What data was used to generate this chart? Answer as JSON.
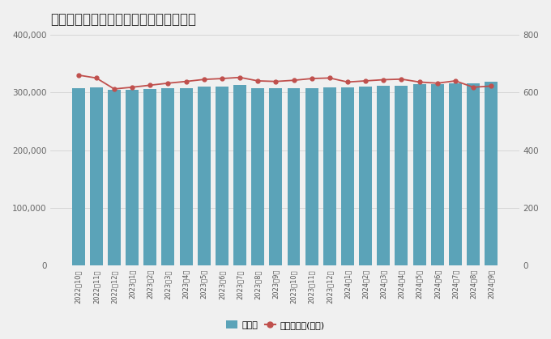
{
  "title": "ヒロセ通商の口座数と預かり資産の推移",
  "categories": [
    "2022年10月",
    "2022年11月",
    "2022年12月",
    "2023年1月",
    "2023年2月",
    "2023年3月",
    "2023年4月",
    "2023年5月",
    "2023年6月",
    "2023年7月",
    "2023年8月",
    "2023年9月",
    "2023年10月",
    "2023年11月",
    "2023年12月",
    "2024年1月",
    "2024年2月",
    "2024年3月",
    "2024年4月",
    "2024年5月",
    "2024年6月",
    "2024年7月",
    "2024年8月",
    "2024年9月"
  ],
  "accounts": [
    308000,
    308500,
    304000,
    305000,
    306000,
    307000,
    308000,
    309500,
    310000,
    313000,
    307000,
    307500,
    307800,
    308000,
    308200,
    309000,
    310000,
    311500,
    312000,
    314000,
    314500,
    316000,
    315500,
    319000
  ],
  "assets": [
    660,
    650,
    612,
    618,
    625,
    632,
    638,
    645,
    648,
    652,
    640,
    638,
    642,
    648,
    650,
    636,
    640,
    644,
    646,
    636,
    632,
    640,
    618,
    622
  ],
  "bar_color": "#5ba3b8",
  "line_color": "#c0504d",
  "bar_label": "口座数",
  "line_label": "預かり資産(億円)",
  "ylim_left": [
    0,
    400000
  ],
  "ylim_right": [
    0,
    800
  ],
  "yticks_left": [
    0,
    100000,
    200000,
    300000,
    400000
  ],
  "yticks_right": [
    0,
    200,
    400,
    600,
    800
  ],
  "title_fontsize": 12,
  "bg_color": "#f0f0f0"
}
